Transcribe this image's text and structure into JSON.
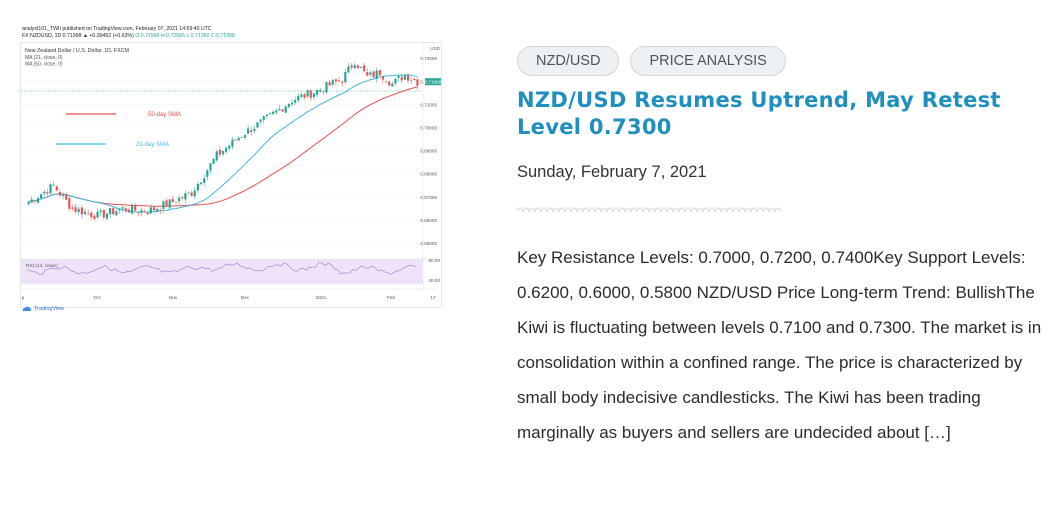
{
  "tags": [
    "NZD/USD",
    "PRICE ANALYSIS"
  ],
  "article": {
    "title": "NZD/USD Resumes Uptrend, May Retest Level 0.7300",
    "date": "Sunday, February 7, 2021",
    "excerpt": "Key Resistance Levels: 0.7000, 0.7200, 0.7400Key Support Levels: 0.6200, 0.6000, 0.5800 NZD/USD Price Long-term Trend: BullishThe Kiwi is fluctuating between levels 0.7100 and 0.7300. The market is in consolidation within a confined range. The price is characterized by small body indecisive candlesticks. The Kiwi has been trading marginally as buyers and sellers are undecided about […]"
  },
  "thumbnail": {
    "header_line1": "analyst101_TWII published on TradingView.com, February 07, 2021 14:59:40 UTC",
    "header_line2_pre": "FX:NZDUSD, 1D 0.71998 ▲ +0.00452 (+0.63%) ",
    "header_line2_ohlc": "O:0.71566 H:0.72065 L:0.71360 C:0.71998",
    "pair_label": "New Zealand Dollar / U.S. Dollar, 1D, FXCM",
    "ma1_label": "MA (21, close, 0)",
    "ma2_label": "MA (50, close, 0)",
    "currency": "USD",
    "sma50_label": "50-day SMA",
    "sma21_label": "21-day SMA",
    "price_badge": "0.71998",
    "rsi_label": "RSI (14, close)",
    "rsi_ticks": [
      "80.00",
      "40.00"
    ],
    "xticks": [
      "p",
      "Oct",
      "Nov",
      "Dec",
      "2021",
      "Feb",
      "17"
    ],
    "brand": "TradingView"
  },
  "chart_data": {
    "type": "candlestick",
    "title": "New Zealand Dollar / U.S. Dollar, 1D, FXCM",
    "y_ticks": [
      0.73,
      0.72,
      0.71,
      0.7,
      0.69,
      0.68,
      0.67,
      0.66,
      0.65
    ],
    "ylim": [
      0.645,
      0.735
    ],
    "x_ticks": [
      "p",
      "Oct",
      "Nov",
      "Dec",
      "2021",
      "Feb",
      "17"
    ],
    "last_close": 0.71998,
    "series": [
      {
        "name": "MA (50, close, 0)",
        "color": "#e8504d"
      },
      {
        "name": "MA (21, close, 0)",
        "color": "#3fb6e0"
      }
    ],
    "colors": {
      "up": "#26a69a",
      "down": "#ef5350",
      "rsi": "#a68ad8",
      "rsi_band": "#efe3fa"
    }
  }
}
